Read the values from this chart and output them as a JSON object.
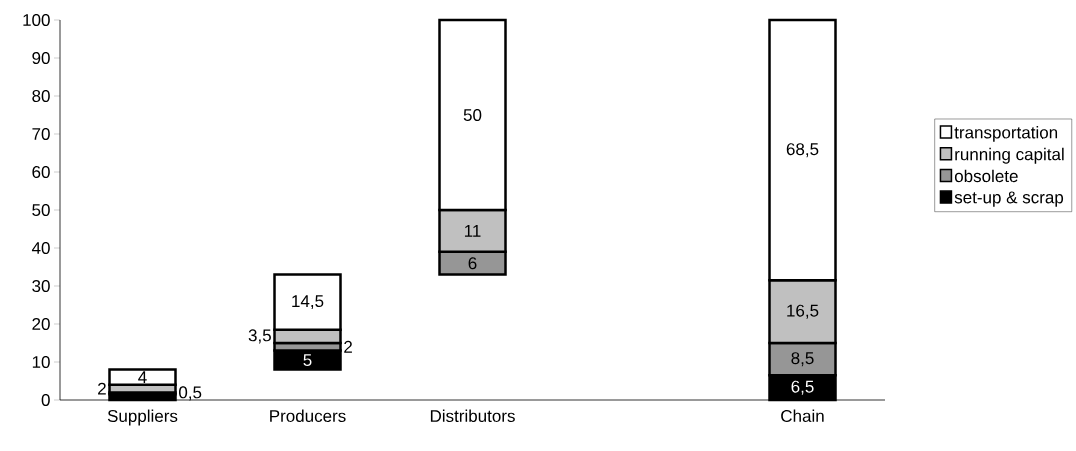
{
  "chart_data": {
    "type": "bar",
    "categories": [
      "Suppliers",
      "Producers",
      "Distributors",
      null,
      "Chain"
    ],
    "series": [
      {
        "name": "set-up & scrap",
        "color": "#000000",
        "base": [
          0,
          8,
          null,
          null,
          0
        ],
        "values": [
          1.5,
          5,
          null,
          null,
          6.5
        ],
        "value_labels": [
          null,
          "5",
          null,
          null,
          "6,5"
        ]
      },
      {
        "name": "obsolete",
        "color": "#969696",
        "base": [
          1.5,
          13,
          33,
          null,
          6.5
        ],
        "values": [
          0.5,
          2,
          6,
          null,
          8.5
        ],
        "value_labels": [
          "0,5",
          "2",
          "6",
          null,
          "8,5"
        ]
      },
      {
        "name": "running capital",
        "color": "#c0c0c0",
        "base": [
          2,
          15,
          39,
          null,
          15
        ],
        "values": [
          2,
          3.5,
          11,
          null,
          16.5
        ],
        "value_labels": [
          "2",
          "3,5",
          "11",
          null,
          "16,5"
        ]
      },
      {
        "name": "transportation",
        "color": "#ffffff",
        "base": [
          4,
          18.5,
          50,
          null,
          31.5
        ],
        "values": [
          4,
          14.5,
          50,
          null,
          68.5
        ],
        "value_labels": [
          "4",
          "14,5",
          "50",
          null,
          "68,5"
        ]
      }
    ],
    "ylim": [
      0,
      100
    ],
    "yticks": [
      0,
      10,
      20,
      30,
      40,
      50,
      60,
      70,
      80,
      90,
      100
    ],
    "legend": "right"
  }
}
